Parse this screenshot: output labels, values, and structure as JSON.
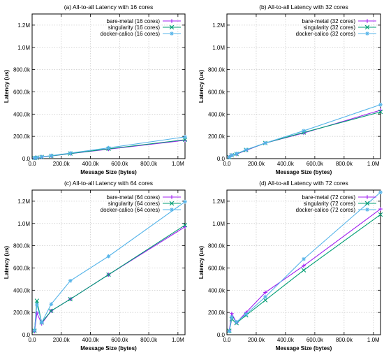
{
  "chart_data": [
    {
      "type": "line",
      "title": "(a) All-to-all Latency with 16 cores",
      "xlabel": "Message Size (bytes)",
      "ylabel": "Latency (us)",
      "xlim": [
        0,
        1048576
      ],
      "ylim": [
        0,
        1300000
      ],
      "xticks": [
        0,
        200000,
        400000,
        600000,
        800000,
        1000000
      ],
      "xtick_labels": [
        "0.0",
        "200.0k",
        "400.0k",
        "600.0k",
        "800.0k",
        "1.0M"
      ],
      "yticks": [
        0,
        200000,
        400000,
        600000,
        800000,
        1000000,
        1200000
      ],
      "ytick_labels": [
        "0.0",
        "200.0k",
        "400.0k",
        "600.0k",
        "800.0k",
        "1.0M",
        "1.2M"
      ],
      "grid": true,
      "legend": "top-right",
      "x": [
        16384,
        32768,
        65536,
        131072,
        262144,
        524288,
        1048576
      ],
      "series": [
        {
          "name": "bare-metal (16 cores)",
          "color": "#a020f0",
          "marker": "plus",
          "values": [
            5000,
            8000,
            14000,
            24000,
            45000,
            85000,
            165000
          ]
        },
        {
          "name": "singularity (16 cores)",
          "color": "#009e73",
          "marker": "cross",
          "values": [
            6000,
            9000,
            15000,
            25000,
            46000,
            88000,
            170000
          ]
        },
        {
          "name": "docker-calico (16 cores)",
          "color": "#56b4e9",
          "marker": "star",
          "values": [
            7000,
            10000,
            16000,
            27000,
            50000,
            97000,
            195000
          ]
        }
      ]
    },
    {
      "type": "line",
      "title": "(b) All-to-all Latency with 32 cores",
      "xlabel": "Message Size (bytes)",
      "ylabel": "Latency (us)",
      "xlim": [
        0,
        1048576
      ],
      "ylim": [
        0,
        1300000
      ],
      "xticks": [
        0,
        200000,
        400000,
        600000,
        800000,
        1000000
      ],
      "xtick_labels": [
        "0.0",
        "200.0k",
        "400.0k",
        "600.0k",
        "800.0k",
        "1.0M"
      ],
      "yticks": [
        0,
        200000,
        400000,
        600000,
        800000,
        1000000,
        1200000
      ],
      "ytick_labels": [
        "0.0",
        "200.0k",
        "400.0k",
        "600.0k",
        "800.0k",
        "1.0M",
        "1.2M"
      ],
      "grid": true,
      "legend": "top-right",
      "x": [
        16384,
        32768,
        65536,
        131072,
        262144,
        524288,
        1048576
      ],
      "series": [
        {
          "name": "bare-metal (32 cores)",
          "color": "#a020f0",
          "marker": "plus",
          "values": [
            15000,
            30000,
            40000,
            75000,
            140000,
            230000,
            435000
          ]
        },
        {
          "name": "singularity (32 cores)",
          "color": "#009e73",
          "marker": "cross",
          "values": [
            14000,
            30000,
            42000,
            78000,
            140000,
            235000,
            420000
          ]
        },
        {
          "name": "docker-calico (32 cores)",
          "color": "#56b4e9",
          "marker": "star",
          "values": [
            13000,
            30000,
            45000,
            80000,
            140000,
            250000,
            485000
          ]
        }
      ]
    },
    {
      "type": "line",
      "title": "(c) All-to-all Latency with 64 cores",
      "xlabel": "Message Size (bytes)",
      "ylabel": "Latency (us)",
      "xlim": [
        0,
        1048576
      ],
      "ylim": [
        0,
        1300000
      ],
      "xticks": [
        0,
        200000,
        400000,
        600000,
        800000,
        1000000
      ],
      "xtick_labels": [
        "0.0",
        "200.0k",
        "400.0k",
        "600.0k",
        "800.0k",
        "1.0M"
      ],
      "yticks": [
        0,
        200000,
        400000,
        600000,
        800000,
        1000000,
        1200000
      ],
      "ytick_labels": [
        "0.0",
        "200.0k",
        "400.0k",
        "600.0k",
        "800.0k",
        "1.0M",
        "1.2M"
      ],
      "grid": true,
      "legend": "top-right",
      "x": [
        16384,
        32768,
        65536,
        131072,
        262144,
        524288,
        1048576
      ],
      "series": [
        {
          "name": "bare-metal (64 cores)",
          "color": "#a020f0",
          "marker": "plus",
          "values": [
            30000,
            195000,
            100000,
            215000,
            320000,
            540000,
            970000
          ]
        },
        {
          "name": "singularity (64 cores)",
          "color": "#009e73",
          "marker": "cross",
          "values": [
            35000,
            305000,
            110000,
            215000,
            320000,
            540000,
            985000
          ]
        },
        {
          "name": "docker-calico (64 cores)",
          "color": "#56b4e9",
          "marker": "star",
          "values": [
            40000,
            270000,
            110000,
            275000,
            485000,
            705000,
            1195000
          ]
        }
      ]
    },
    {
      "type": "line",
      "title": "(d) All-to-all Latency with 72 cores",
      "xlabel": "Message Size (bytes)",
      "ylabel": "Latency (us)",
      "xlim": [
        0,
        1048576
      ],
      "ylim": [
        0,
        1300000
      ],
      "xticks": [
        0,
        200000,
        400000,
        600000,
        800000,
        1000000
      ],
      "xtick_labels": [
        "0.0",
        "200.0k",
        "400.0k",
        "600.0k",
        "800.0k",
        "1.0M"
      ],
      "yticks": [
        0,
        200000,
        400000,
        600000,
        800000,
        1000000,
        1200000
      ],
      "ytick_labels": [
        "0.0",
        "200.0k",
        "400.0k",
        "600.0k",
        "800.0k",
        "1.0M",
        "1.2M"
      ],
      "grid": true,
      "legend": "top-right",
      "x": [
        16384,
        32768,
        65536,
        131072,
        262144,
        524288,
        1048576
      ],
      "series": [
        {
          "name": "bare-metal (72 cores)",
          "color": "#a020f0",
          "marker": "plus",
          "values": [
            40000,
            190000,
            110000,
            200000,
            380000,
            620000,
            1130000
          ]
        },
        {
          "name": "singularity (72 cores)",
          "color": "#009e73",
          "marker": "cross",
          "values": [
            35000,
            140000,
            105000,
            175000,
            310000,
            580000,
            1080000
          ]
        },
        {
          "name": "docker-calico (72 cores)",
          "color": "#56b4e9",
          "marker": "star",
          "values": [
            30000,
            160000,
            115000,
            185000,
            340000,
            680000,
            1280000
          ]
        }
      ]
    }
  ]
}
